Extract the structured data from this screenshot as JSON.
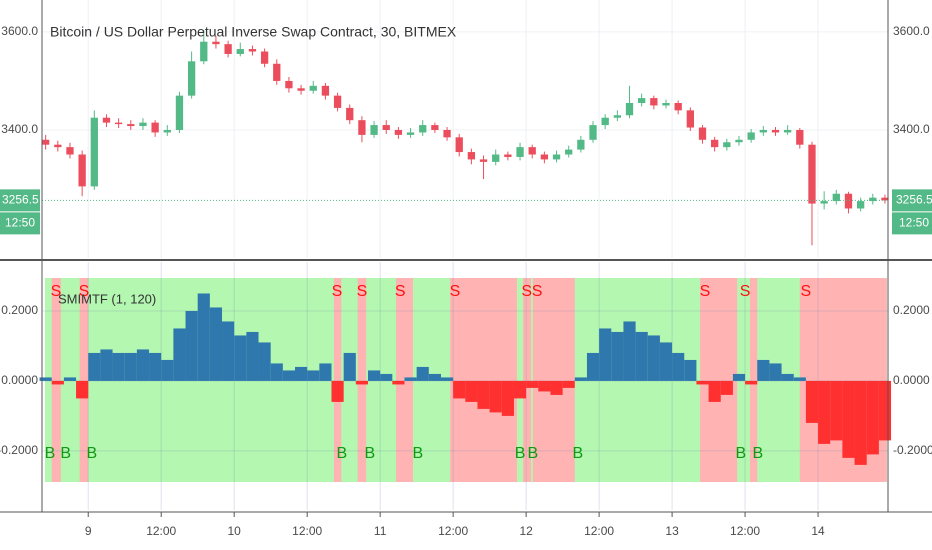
{
  "chart_data": [
    {
      "type": "candlestick",
      "title": "Bitcoin / US Dollar Perpetual Inverse Swap Contract, 30, BITMEX",
      "xlim": [
        16.4,
        155.5
      ],
      "ylim": [
        3139,
        3665
      ],
      "yticks": [
        {
          "value": 3400,
          "label": "3400.0"
        },
        {
          "value": 3600,
          "label": "3600.0"
        }
      ],
      "grid": true,
      "up_color": "#53b987",
      "down_color": "#eb4d5c",
      "countdown": "12:50",
      "x": [
        17,
        19,
        21,
        23,
        25,
        27,
        29,
        31,
        33,
        35,
        37,
        39,
        41,
        43,
        45,
        47,
        49,
        51,
        53,
        55,
        57,
        59,
        61,
        63,
        65,
        67,
        69,
        71,
        73,
        75,
        77,
        79,
        81,
        83,
        85,
        87,
        89,
        91,
        93,
        95,
        97,
        99,
        101,
        103,
        105,
        107,
        109,
        111,
        113,
        115,
        117,
        119,
        121,
        123,
        125,
        127,
        129,
        131,
        133,
        135,
        137,
        139,
        141,
        143,
        145,
        147,
        149,
        151,
        153,
        155
      ],
      "open": [
        3380,
        3370,
        3365,
        3350,
        3285,
        3425,
        3415,
        3412,
        3408,
        3415,
        3395,
        3400,
        3470,
        3540,
        3580,
        3575,
        3555,
        3565,
        3560,
        3535,
        3500,
        3485,
        3480,
        3490,
        3470,
        3445,
        3420,
        3390,
        3410,
        3400,
        3390,
        3395,
        3410,
        3400,
        3385,
        3355,
        3340,
        3335,
        3350,
        3345,
        3365,
        3350,
        3340,
        3350,
        3360,
        3380,
        3410,
        3425,
        3430,
        3455,
        3465,
        3450,
        3455,
        3440,
        3405,
        3380,
        3365,
        3375,
        3380,
        3395,
        3400,
        3395,
        3400,
        3370,
        3250,
        3255,
        3270,
        3240,
        3255,
        3262
      ],
      "high": [
        3390,
        3378,
        3374,
        3358,
        3440,
        3432,
        3424,
        3420,
        3424,
        3420,
        3410,
        3478,
        3560,
        3604,
        3592,
        3582,
        3578,
        3572,
        3566,
        3544,
        3508,
        3492,
        3500,
        3496,
        3476,
        3452,
        3428,
        3418,
        3420,
        3406,
        3404,
        3420,
        3415,
        3406,
        3392,
        3362,
        3348,
        3360,
        3356,
        3374,
        3370,
        3356,
        3358,
        3368,
        3388,
        3418,
        3432,
        3440,
        3490,
        3474,
        3470,
        3462,
        3460,
        3446,
        3410,
        3386,
        3382,
        3388,
        3402,
        3408,
        3406,
        3410,
        3404,
        3376,
        3275,
        3278,
        3274,
        3262,
        3270,
        3268
      ],
      "low": [
        3360,
        3356,
        3342,
        3265,
        3278,
        3406,
        3404,
        3400,
        3400,
        3386,
        3388,
        3394,
        3464,
        3534,
        3566,
        3548,
        3550,
        3552,
        3528,
        3492,
        3476,
        3472,
        3474,
        3462,
        3438,
        3412,
        3375,
        3384,
        3392,
        3382,
        3384,
        3388,
        3394,
        3378,
        3346,
        3330,
        3300,
        3328,
        3338,
        3338,
        3342,
        3332,
        3334,
        3344,
        3354,
        3374,
        3402,
        3418,
        3424,
        3448,
        3442,
        3444,
        3432,
        3398,
        3372,
        3356,
        3358,
        3368,
        3374,
        3388,
        3388,
        3390,
        3362,
        3165,
        3238,
        3248,
        3230,
        3234,
        3248,
        3250
      ],
      "close": [
        3370,
        3365,
        3350,
        3285,
        3425,
        3415,
        3412,
        3408,
        3415,
        3395,
        3400,
        3470,
        3540,
        3580,
        3575,
        3555,
        3565,
        3560,
        3535,
        3500,
        3485,
        3480,
        3490,
        3470,
        3445,
        3420,
        3390,
        3410,
        3400,
        3390,
        3395,
        3410,
        3400,
        3385,
        3355,
        3340,
        3335,
        3350,
        3345,
        3365,
        3350,
        3340,
        3350,
        3360,
        3380,
        3410,
        3425,
        3430,
        3455,
        3465,
        3450,
        3455,
        3440,
        3405,
        3380,
        3365,
        3375,
        3380,
        3395,
        3400,
        3395,
        3400,
        3370,
        3250,
        3255,
        3270,
        3240,
        3255,
        3262,
        3256.5
      ]
    },
    {
      "type": "bar",
      "title": "SMIMTF (1, 120)",
      "xlim": [
        16.4,
        155.5
      ],
      "ylim": [
        -0.369,
        0.34
      ],
      "yticks": [
        {
          "value": -0.2,
          "label": "-0.2000"
        },
        {
          "value": 0,
          "label": "0.0000"
        },
        {
          "value": 0.2,
          "label": "0.2000"
        }
      ],
      "xticks": [
        {
          "value": 24,
          "label": "9"
        },
        {
          "value": 36,
          "label": "12:00"
        },
        {
          "value": 48,
          "label": "10"
        },
        {
          "value": 60,
          "label": "12:00"
        },
        {
          "value": 72,
          "label": "11"
        },
        {
          "value": 84,
          "label": "12:00"
        },
        {
          "value": 96,
          "label": "12"
        },
        {
          "value": 108,
          "label": "12:00"
        },
        {
          "value": 120,
          "label": "13"
        },
        {
          "value": 132,
          "label": "12:00"
        },
        {
          "value": 144,
          "label": "14"
        }
      ],
      "grid": true,
      "positive_color": "#2f78ad",
      "negative_color": "#ff3030",
      "band_color": "#b3f7b0",
      "zone_color": "#ffb3b3",
      "sell_label": "S",
      "buy_label": "B",
      "sell_color": "#ff1010",
      "buy_color": "#119911",
      "x": [
        17,
        19,
        21,
        23,
        25,
        27,
        29,
        31,
        33,
        35,
        37,
        39,
        41,
        43,
        45,
        47,
        49,
        51,
        53,
        55,
        57,
        59,
        61,
        63,
        65,
        67,
        69,
        71,
        73,
        75,
        77,
        79,
        81,
        83,
        85,
        87,
        89,
        91,
        93,
        95,
        97,
        99,
        101,
        103,
        105,
        107,
        109,
        111,
        113,
        115,
        117,
        119,
        121,
        123,
        125,
        127,
        129,
        131,
        133,
        135,
        137,
        139,
        141,
        143,
        145,
        147,
        149,
        151,
        153,
        155
      ],
      "values": [
        0.01,
        -0.01,
        0.01,
        -0.05,
        0.08,
        0.09,
        0.08,
        0.08,
        0.09,
        0.08,
        0.06,
        0.15,
        0.2,
        0.25,
        0.21,
        0.17,
        0.13,
        0.14,
        0.11,
        0.05,
        0.03,
        0.04,
        0.03,
        0.05,
        -0.06,
        0.08,
        -0.01,
        0.03,
        0.02,
        -0.01,
        0.01,
        0.04,
        0.02,
        0.01,
        -0.05,
        -0.06,
        -0.08,
        -0.09,
        -0.1,
        -0.05,
        -0.02,
        -0.03,
        -0.04,
        -0.02,
        0.01,
        0.08,
        0.15,
        0.14,
        0.17,
        0.14,
        0.13,
        0.11,
        0.08,
        0.06,
        -0.01,
        -0.06,
        -0.04,
        0.02,
        -0.01,
        0.06,
        0.05,
        0.02,
        0.01,
        -0.12,
        -0.18,
        -0.17,
        -0.22,
        -0.24,
        -0.21,
        -0.17
      ],
      "red_zones": [
        [
          18.0,
          19.5
        ],
        [
          22.6,
          24.0
        ],
        [
          64.4,
          65.6
        ],
        [
          68.3,
          69.7
        ],
        [
          74.6,
          77.4
        ],
        [
          83.5,
          94.5
        ],
        [
          95.5,
          96.8
        ],
        [
          97.1,
          104.0
        ],
        [
          124.6,
          130.7
        ],
        [
          132.8,
          134.0
        ],
        [
          141.0,
          155.3
        ]
      ],
      "sell_signals": [
        18.7,
        23.3,
        64.9,
        69.0,
        75.3,
        84.3,
        96.1,
        97.8,
        125.4,
        132.0,
        142.0
      ],
      "buy_signals": [
        17.7,
        20.3,
        24.6,
        65.7,
        70.3,
        78.2,
        95.0,
        97.1,
        104.5,
        131.3,
        134.1
      ]
    }
  ]
}
